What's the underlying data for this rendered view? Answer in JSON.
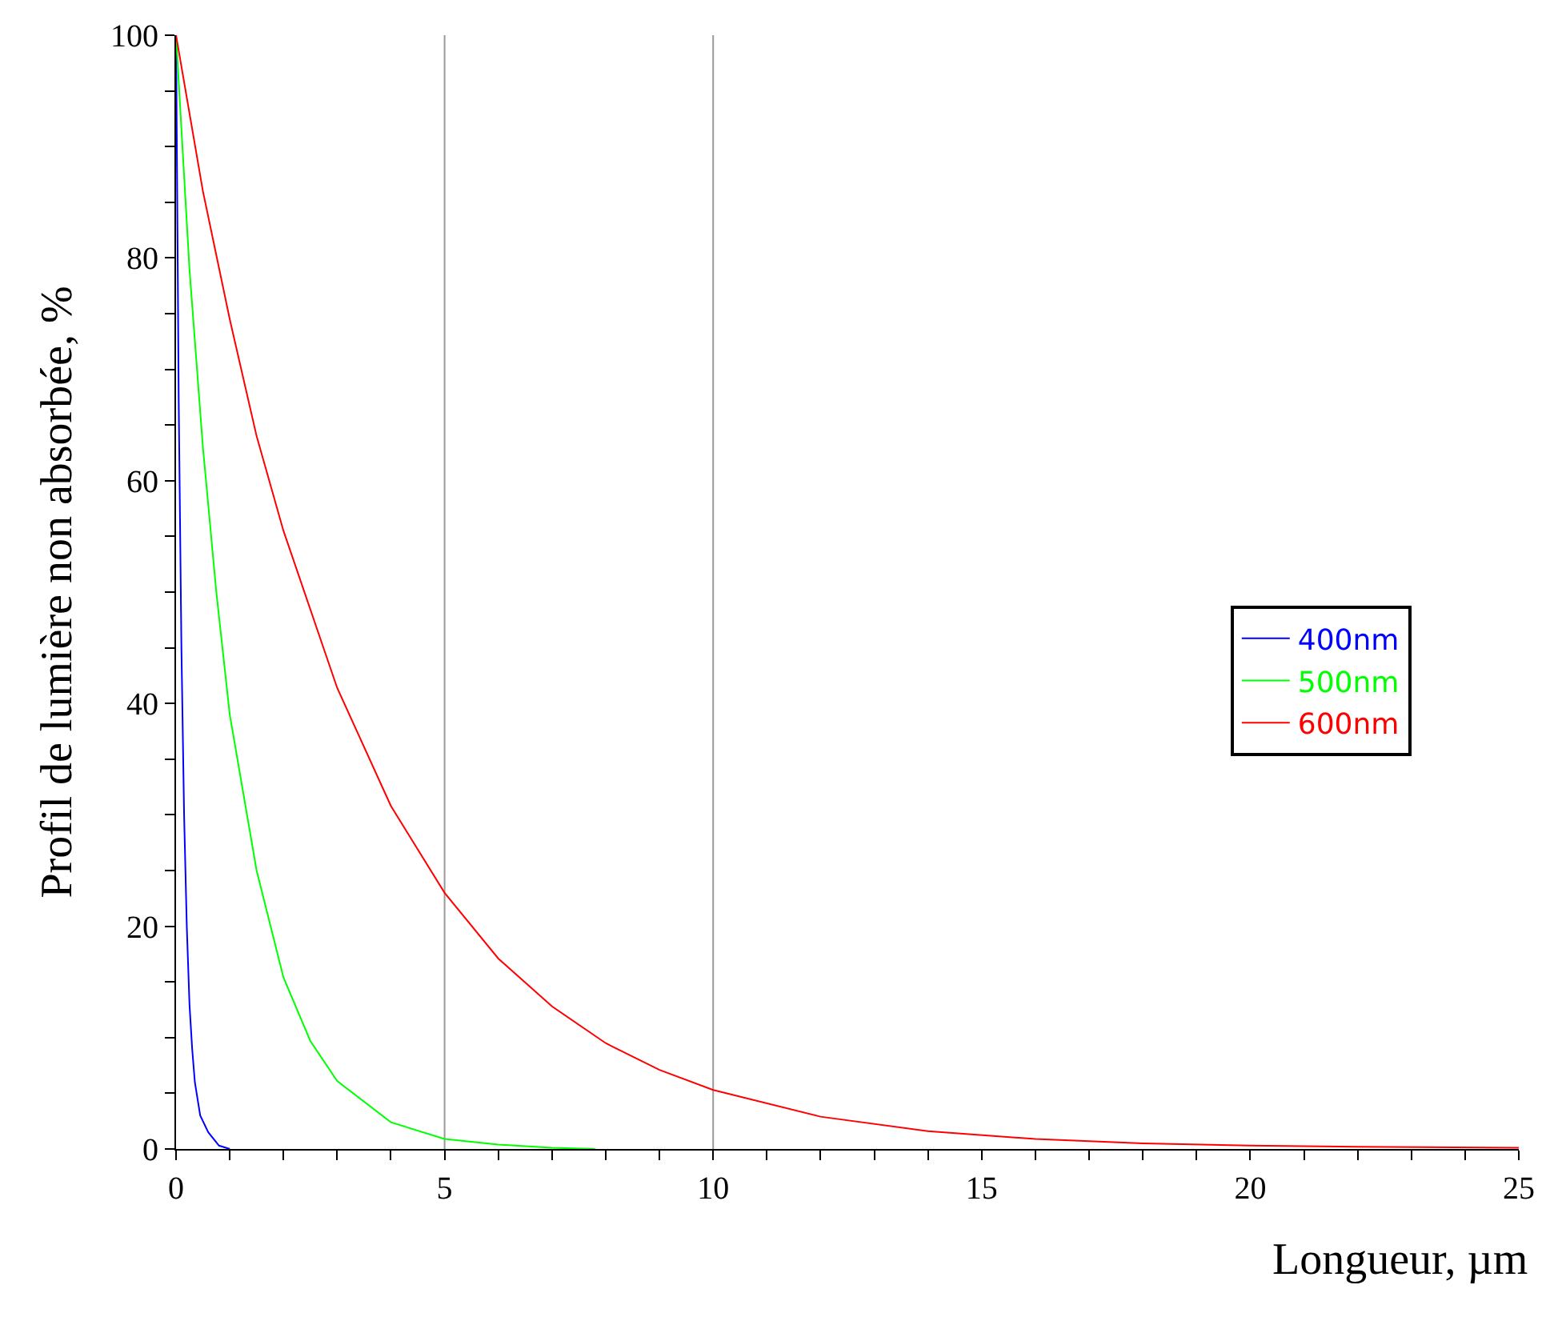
{
  "chart_data": {
    "type": "line",
    "xlabel": "Longueur, µm",
    "ylabel": "Profil de lumière non absorbée, %",
    "series": [
      {
        "name": "400nm",
        "color": "#0000ff",
        "x": [
          0,
          0.05,
          0.1,
          0.15,
          0.2,
          0.25,
          0.3,
          0.35,
          0.45,
          0.6,
          0.8,
          1.0
        ],
        "values": [
          100,
          67,
          45,
          30,
          20,
          13,
          9,
          6,
          3,
          1.5,
          0.3,
          0
        ]
      },
      {
        "name": "500nm",
        "color": "#00ff00",
        "x": [
          0,
          0.25,
          0.5,
          0.75,
          1,
          1.5,
          2,
          2.5,
          3,
          4,
          5,
          6,
          7,
          7.8
        ],
        "values": [
          100,
          79,
          63,
          50,
          39,
          25,
          15.4,
          9.7,
          6.1,
          2.4,
          0.9,
          0.4,
          0.1,
          0
        ]
      },
      {
        "name": "600nm",
        "color": "#ff0000",
        "x": [
          0,
          0.5,
          1,
          1.5,
          2,
          3,
          4,
          5,
          6,
          7,
          8,
          9,
          10,
          12,
          14,
          16,
          18,
          20,
          22,
          25
        ],
        "values": [
          100,
          86,
          74.5,
          64,
          55.5,
          41.4,
          30.8,
          23,
          17.1,
          12.8,
          9.5,
          7.1,
          5.3,
          2.9,
          1.6,
          0.9,
          0.5,
          0.3,
          0.2,
          0.1
        ]
      }
    ],
    "xlim": [
      0,
      25
    ],
    "xticks": [
      0,
      {
        "value": 1,
        "label": null
      },
      {
        "value": 2,
        "label": null
      },
      {
        "value": 3,
        "label": null
      },
      {
        "value": 4,
        "label": null
      },
      5,
      {
        "value": 6,
        "label": null
      },
      {
        "value": 7,
        "label": null
      },
      {
        "value": 8,
        "label": null
      },
      {
        "value": 9,
        "label": null
      },
      10,
      {
        "value": 11,
        "label": null
      },
      {
        "value": 12,
        "label": null
      },
      {
        "value": 13,
        "label": null
      },
      {
        "value": 14,
        "label": null
      },
      15,
      {
        "value": 16,
        "label": null
      },
      {
        "value": 17,
        "label": null
      },
      {
        "value": 18,
        "label": null
      },
      {
        "value": 19,
        "label": null
      },
      20,
      {
        "value": 21,
        "label": null
      },
      {
        "value": 22,
        "label": null
      },
      {
        "value": 23,
        "label": null
      },
      {
        "value": 24,
        "label": null
      },
      25
    ],
    "ylim": [
      0,
      100
    ],
    "yticks": [
      0,
      {
        "value": 5,
        "label": null
      },
      {
        "value": 10,
        "label": null
      },
      {
        "value": 15,
        "label": null
      },
      20,
      {
        "value": 25,
        "label": null
      },
      {
        "value": 30,
        "label": null
      },
      {
        "value": 35,
        "label": null
      },
      40,
      {
        "value": 45,
        "label": null
      },
      {
        "value": 50,
        "label": null
      },
      {
        "value": 55,
        "label": null
      },
      60,
      {
        "value": 65,
        "label": null
      },
      {
        "value": 70,
        "label": null
      },
      {
        "value": 75,
        "label": null
      },
      80,
      {
        "value": 85,
        "label": null
      },
      {
        "value": 90,
        "label": null
      },
      {
        "value": 95,
        "label": null
      },
      100
    ],
    "ref_lines": [
      {
        "axis": "x",
        "value": 5,
        "color": "#999999"
      },
      {
        "axis": "x",
        "value": 10,
        "color": "#999999"
      }
    ],
    "grid": false,
    "legend": "right",
    "marker": "none",
    "line_style": "solid"
  }
}
